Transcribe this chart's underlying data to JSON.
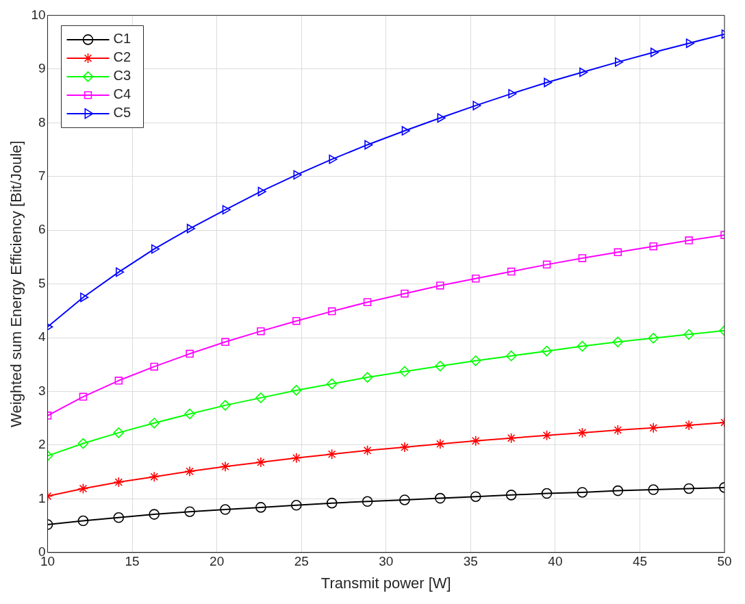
{
  "chart_data": {
    "type": "line",
    "xlabel": "Transmit power [W]",
    "ylabel": "Weighted sum Energy Efficiency [Bit/Joule]",
    "x": [
      10,
      12.1,
      14.2,
      16.3,
      18.4,
      20.5,
      22.6,
      24.7,
      26.8,
      28.9,
      31.1,
      33.2,
      35.3,
      37.4,
      39.5,
      41.6,
      43.7,
      45.8,
      47.9,
      50
    ],
    "xlim": [
      10,
      50
    ],
    "xticks": [
      10,
      15,
      20,
      25,
      30,
      35,
      40,
      45,
      50
    ],
    "ylim": [
      0,
      10
    ],
    "yticks": [
      0,
      1,
      2,
      3,
      4,
      5,
      6,
      7,
      8,
      9,
      10
    ],
    "grid": true,
    "legend": "top left",
    "line_style": "solid",
    "series": [
      {
        "name": "C1",
        "color": "#000000",
        "marker": "circle",
        "values": [
          0.52,
          0.59,
          0.65,
          0.71,
          0.76,
          0.8,
          0.84,
          0.88,
          0.92,
          0.95,
          0.98,
          1.01,
          1.04,
          1.07,
          1.1,
          1.12,
          1.15,
          1.17,
          1.19,
          1.21
        ]
      },
      {
        "name": "C2",
        "color": "#ff0000",
        "marker": "cross",
        "values": [
          1.05,
          1.19,
          1.31,
          1.41,
          1.51,
          1.6,
          1.68,
          1.76,
          1.83,
          1.9,
          1.96,
          2.02,
          2.08,
          2.13,
          2.18,
          2.23,
          2.28,
          2.32,
          2.37,
          2.42
        ]
      },
      {
        "name": "C3",
        "color": "#00ff00",
        "marker": "diamond",
        "values": [
          1.8,
          2.03,
          2.23,
          2.41,
          2.58,
          2.74,
          2.88,
          3.02,
          3.14,
          3.26,
          3.37,
          3.47,
          3.57,
          3.66,
          3.75,
          3.84,
          3.92,
          3.99,
          4.06,
          4.13
        ]
      },
      {
        "name": "C4",
        "color": "#ff00ff",
        "marker": "square",
        "values": [
          2.55,
          2.9,
          3.2,
          3.46,
          3.7,
          3.92,
          4.12,
          4.31,
          4.49,
          4.66,
          4.82,
          4.97,
          5.1,
          5.23,
          5.36,
          5.48,
          5.59,
          5.7,
          5.81,
          5.91
        ]
      },
      {
        "name": "C5",
        "color": "#0000ff",
        "marker": "triangle",
        "values": [
          4.2,
          4.75,
          5.22,
          5.65,
          6.03,
          6.38,
          6.72,
          7.03,
          7.32,
          7.59,
          7.85,
          8.09,
          8.32,
          8.54,
          8.75,
          8.94,
          9.13,
          9.31,
          9.48,
          9.65
        ]
      }
    ]
  }
}
